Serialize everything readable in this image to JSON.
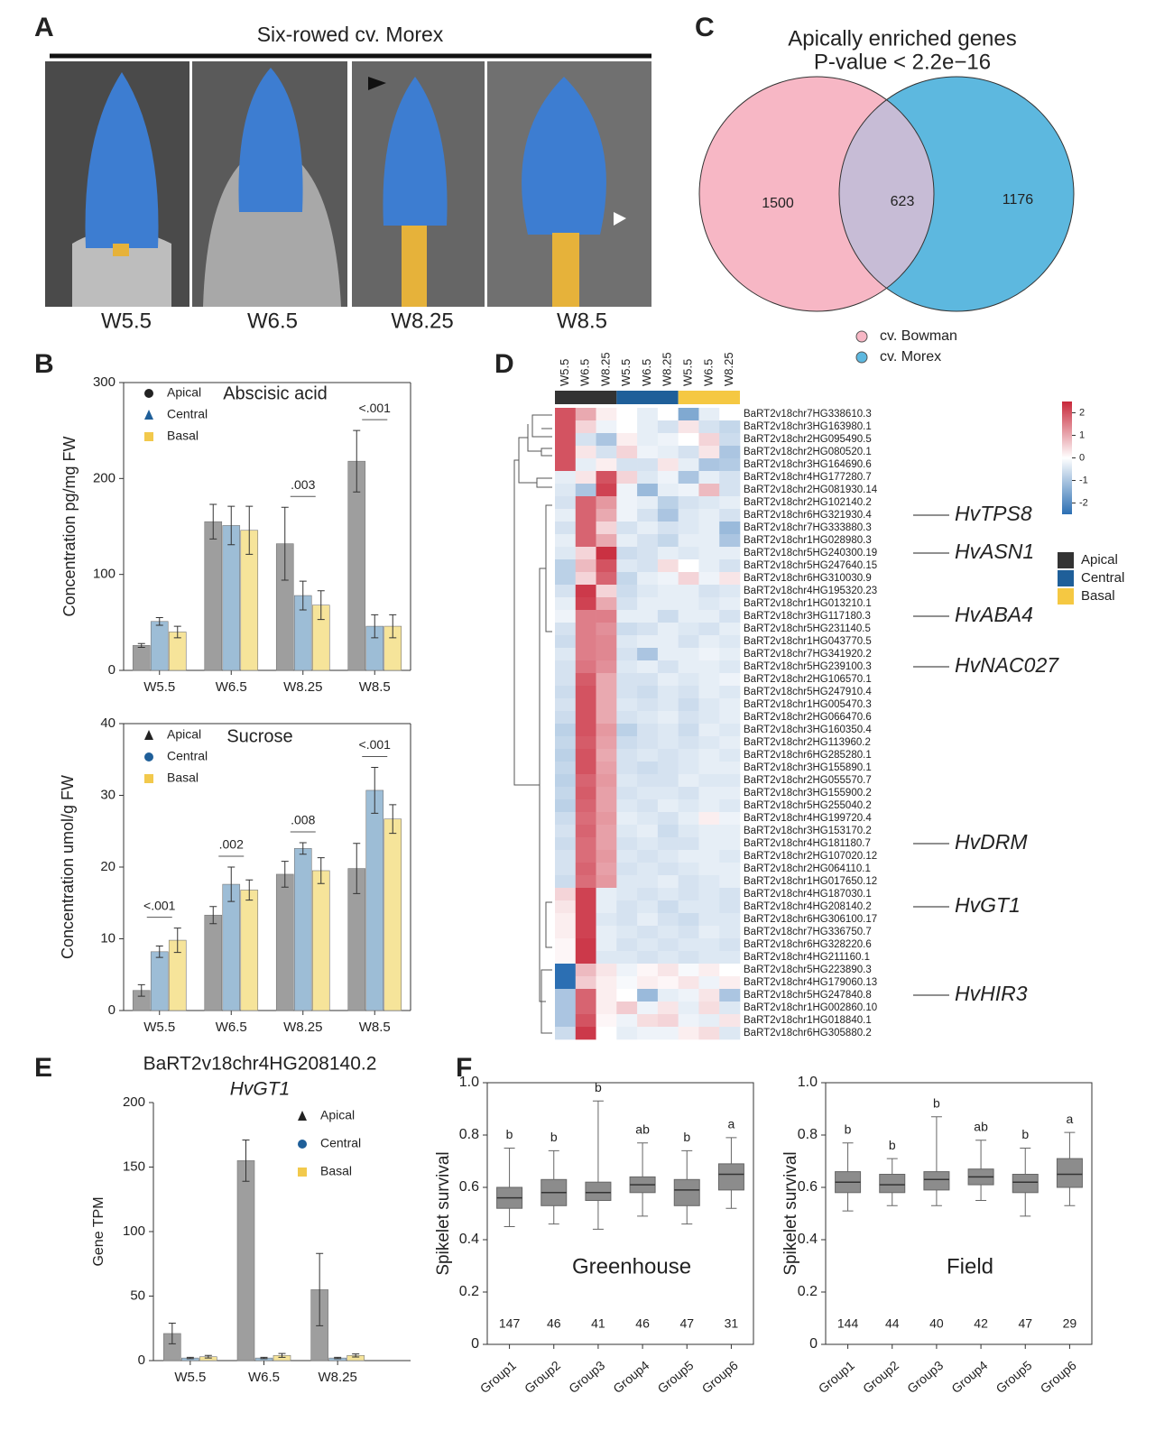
{
  "figure_a": {
    "panel": "A",
    "title": "Six-rowed cv. Morex",
    "stages": [
      "W5.5",
      "W6.5",
      "W8.25",
      "W8.5"
    ]
  },
  "chart_data": [
    {
      "type": "bar",
      "panel": "B",
      "title": "Abscisic acid",
      "y_label": "Concentration pg/mg FW",
      "categories": [
        "W5.5",
        "W6.5",
        "W8.25",
        "W8.5"
      ],
      "series": [
        {
          "name": "Apical",
          "color": "#9e9e9e",
          "marker": "circle",
          "values": [
            26,
            155,
            132,
            218
          ],
          "errors": [
            2,
            18,
            38,
            32
          ]
        },
        {
          "name": "Central",
          "color": "#9dbdd6",
          "marker": "triangle",
          "values": [
            51,
            151,
            78,
            46
          ],
          "errors": [
            4,
            20,
            15,
            12
          ]
        },
        {
          "name": "Basal",
          "color": "#f6e49a",
          "marker": "square",
          "values": [
            40,
            146,
            68,
            46
          ],
          "errors": [
            6,
            25,
            15,
            12
          ]
        }
      ],
      "annotations": [
        null,
        null,
        ".003",
        "<.001"
      ],
      "ylim": [
        0,
        300
      ],
      "yticks": [
        0,
        100,
        200,
        300
      ]
    },
    {
      "type": "bar",
      "title": "Sucrose",
      "y_label": "Concentration umol/g FW",
      "categories": [
        "W5.5",
        "W6.5",
        "W8.25",
        "W8.5"
      ],
      "series": [
        {
          "name": "Apical",
          "color": "#9e9e9e",
          "marker": "triangle",
          "values": [
            2.8,
            13.3,
            19,
            19.8
          ],
          "errors": [
            0.8,
            1.2,
            1.8,
            3.5
          ]
        },
        {
          "name": "Central",
          "color": "#9dbdd6",
          "marker": "circle",
          "values": [
            8.2,
            17.6,
            22.6,
            30.7
          ],
          "errors": [
            0.8,
            2.4,
            0.8,
            3.2
          ]
        },
        {
          "name": "Basal",
          "color": "#f6e49a",
          "marker": "square",
          "values": [
            9.8,
            16.8,
            19.5,
            26.7
          ],
          "errors": [
            1.7,
            1.4,
            1.8,
            2
          ]
        }
      ],
      "annotations": [
        "<.001",
        ".002",
        ".008",
        "<.001"
      ],
      "ylim": [
        0,
        40
      ],
      "yticks": [
        0,
        10,
        20,
        30,
        40
      ]
    },
    {
      "type": "bar",
      "panel": "E",
      "title": "BaRT2v18chr4HG208140.2",
      "subtitle": "HvGT1",
      "y_label": "Gene TPM",
      "categories": [
        "W5.5",
        "W6.5",
        "W8.25"
      ],
      "series": [
        {
          "name": "Apical",
          "color": "#9e9e9e",
          "marker": "triangle",
          "values": [
            21,
            155,
            55
          ],
          "errors": [
            8,
            16,
            28
          ]
        },
        {
          "name": "Central",
          "color": "#9dbdd6",
          "marker": "circle",
          "values": [
            2,
            2,
            2
          ],
          "errors": [
            0.5,
            0.5,
            0.5
          ]
        },
        {
          "name": "Basal",
          "color": "#f6e49a",
          "marker": "square",
          "values": [
            3,
            4,
            4
          ],
          "errors": [
            1,
            1.5,
            1.2
          ]
        }
      ],
      "annotations": [
        null,
        null,
        null
      ],
      "ylim": [
        0,
        200
      ],
      "yticks": [
        0,
        50,
        100,
        150,
        200
      ]
    },
    {
      "type": "heatmap",
      "panel": "D",
      "columns": [
        "W5.5",
        "W6.5",
        "W8.25",
        "W5.5",
        "W6.5",
        "W8.25",
        "W5.5",
        "W6.5",
        "W8.25"
      ],
      "groups": [
        {
          "name": "Apical",
          "color": "#333333"
        },
        {
          "name": "Central",
          "color": "#1f5f99"
        },
        {
          "name": "Basal",
          "color": "#f5c842"
        }
      ],
      "clim": [
        -2.5,
        2.5
      ],
      "cticks": [
        2,
        1,
        0,
        -1,
        -2
      ],
      "rows": [
        "BaRT2v18chr7HG338610.3",
        "BaRT2v18chr3HG163980.1",
        "BaRT2v18chr2HG095490.5",
        "BaRT2v18chr2HG080520.1",
        "BaRT2v18chr3HG164690.6",
        "BaRT2v18chr4HG177280.7",
        "BaRT2v18chr2HG081930.14",
        "BaRT2v18chr2HG102140.2",
        "BaRT2v18chr6HG321930.4",
        "BaRT2v18chr7HG333880.3",
        "BaRT2v18chr1HG028980.3",
        "BaRT2v18chr5HG240300.19",
        "BaRT2v18chr5HG247640.15",
        "BaRT2v18chr6HG310030.9",
        "BaRT2v18chr4HG195320.23",
        "BaRT2v18chr1HG013210.1",
        "BaRT2v18chr3HG117180.3",
        "BaRT2v18chr5HG231140.5",
        "BaRT2v18chr1HG043770.5",
        "BaRT2v18chr7HG341920.2",
        "BaRT2v18chr5HG239100.3",
        "BaRT2v18chr2HG106570.1",
        "BaRT2v18chr5HG247910.4",
        "BaRT2v18chr1HG005470.3",
        "BaRT2v18chr2HG066470.6",
        "BaRT2v18chr3HG160350.4",
        "BaRT2v18chr2HG113960.2",
        "BaRT2v18chr6HG285280.1",
        "BaRT2v18chr3HG155890.1",
        "BaRT2v18chr2HG055570.7",
        "BaRT2v18chr3HG155900.2",
        "BaRT2v18chr5HG255040.2",
        "BaRT2v18chr4HG199720.4",
        "BaRT2v18chr3HG153170.2",
        "BaRT2v18chr4HG181180.7",
        "BaRT2v18chr2HG107020.12",
        "BaRT2v18chr2HG064110.1",
        "BaRT2v18chr1HG017650.12",
        "BaRT2v18chr4HG187030.1",
        "BaRT2v18chr4HG208140.2",
        "BaRT2v18chr6HG306100.17",
        "BaRT2v18chr7HG336750.7",
        "BaRT2v18chr6HG328220.6",
        "BaRT2v18chr4HG211160.1",
        "BaRT2v18chr5HG223890.3",
        "BaRT2v18chr4HG179060.13",
        "BaRT2v18chr5HG247840.8",
        "BaRT2v18chr1HG002860.10",
        "BaRT2v18chr1HG018840.1",
        "BaRT2v18chr6HG305880.2"
      ],
      "annotations": [
        null,
        null,
        null,
        null,
        null,
        null,
        null,
        null,
        "HvTPS8",
        null,
        null,
        "HvASN1",
        null,
        null,
        null,
        null,
        "HvABA4",
        null,
        null,
        null,
        "HvNAC027",
        null,
        null,
        null,
        null,
        null,
        null,
        null,
        null,
        null,
        null,
        null,
        null,
        null,
        "HvDRM",
        null,
        null,
        null,
        null,
        "HvGT1",
        null,
        null,
        null,
        null,
        null,
        null,
        "HvHIR3",
        null,
        null,
        null
      ],
      "values": [
        [
          2,
          1,
          0.2,
          0,
          -0.3,
          0,
          -1.5,
          -0.3,
          0
        ],
        [
          2,
          0.5,
          -0.2,
          0,
          -0.3,
          -0.5,
          0.3,
          -0.5,
          -0.7
        ],
        [
          2,
          -0.5,
          -1,
          0.2,
          -0.3,
          -0.2,
          0,
          0.5,
          -0.6
        ],
        [
          2,
          0.3,
          -0.5,
          0.5,
          -0.2,
          -0.3,
          -0.5,
          0.3,
          -1
        ],
        [
          2,
          -0.3,
          0.2,
          -0.5,
          -0.5,
          0.3,
          -0.3,
          -1,
          -0.9
        ],
        [
          -0.3,
          0.3,
          2,
          0.5,
          -0.4,
          -0.2,
          -1,
          -0.3,
          -0.5
        ],
        [
          -0.4,
          -1,
          2.2,
          -0.2,
          -1.2,
          -0.3,
          -0.2,
          0.8,
          -0.5
        ],
        [
          -0.5,
          1.8,
          1.2,
          -0.2,
          -0.3,
          -0.8,
          -0.5,
          -0.4,
          -0.3
        ],
        [
          -0.3,
          1.8,
          1,
          -0.2,
          -0.5,
          -1,
          -0.4,
          -0.3,
          -0.5
        ],
        [
          -0.5,
          1.8,
          0.5,
          -0.5,
          -0.3,
          -0.5,
          -0.4,
          -0.3,
          -1.2
        ],
        [
          -0.3,
          1.8,
          1,
          -0.3,
          -0.5,
          -0.7,
          -0.3,
          -0.3,
          -1
        ],
        [
          -0.4,
          0.5,
          2.4,
          -0.6,
          -0.5,
          -0.3,
          -0.4,
          -0.3,
          -0.3
        ],
        [
          -0.8,
          0.8,
          2,
          -0.4,
          -0.5,
          0.4,
          0,
          -0.3,
          -0.5
        ],
        [
          -0.8,
          0.5,
          1.8,
          -0.7,
          -0.3,
          -0.2,
          0.5,
          -0.2,
          0.3
        ],
        [
          -0.5,
          2.3,
          0.5,
          -0.6,
          -0.4,
          -0.3,
          -0.3,
          -0.5,
          -0.4
        ],
        [
          -0.3,
          2.2,
          1,
          -0.5,
          -0.3,
          -0.3,
          -0.3,
          -0.4,
          -0.3
        ],
        [
          -0.2,
          1.5,
          1.5,
          -0.3,
          -0.3,
          -0.6,
          -0.3,
          -0.3,
          -0.5
        ],
        [
          -0.5,
          1.5,
          1.3,
          -0.6,
          -0.5,
          -0.3,
          -0.4,
          -0.5,
          -0.3
        ],
        [
          -0.6,
          1.5,
          1.4,
          -0.4,
          -0.3,
          -0.3,
          -0.5,
          -0.3,
          -0.4
        ],
        [
          -0.4,
          1.5,
          1.4,
          -0.5,
          -1,
          -0.3,
          -0.3,
          -0.2,
          -0.3
        ],
        [
          -0.5,
          1.6,
          1.3,
          -0.4,
          -0.3,
          -0.5,
          -0.3,
          -0.3,
          -0.4
        ],
        [
          -0.5,
          1.9,
          1,
          -0.5,
          -0.5,
          -0.3,
          -0.4,
          -0.3,
          -0.2
        ],
        [
          -0.6,
          2,
          1,
          -0.5,
          -0.6,
          -0.4,
          -0.5,
          -0.3,
          -0.4
        ],
        [
          -0.5,
          2,
          1,
          -0.4,
          -0.5,
          -0.4,
          -0.6,
          -0.4,
          -0.3
        ],
        [
          -0.6,
          2,
          1,
          -0.5,
          -0.4,
          -0.3,
          -0.5,
          -0.4,
          -0.3
        ],
        [
          -0.8,
          2,
          1.2,
          -0.8,
          -0.5,
          -0.4,
          -0.6,
          -0.3,
          -0.4
        ],
        [
          -0.7,
          1.9,
          1.1,
          -0.6,
          -0.5,
          -0.4,
          -0.5,
          -0.4,
          -0.3
        ],
        [
          -0.8,
          2,
          1,
          -0.5,
          -0.4,
          -0.5,
          -0.4,
          -0.3,
          -0.4
        ],
        [
          -0.7,
          2,
          1.1,
          -0.5,
          -0.6,
          -0.5,
          -0.4,
          -0.3,
          -0.3
        ],
        [
          -0.8,
          1.8,
          1.2,
          -0.4,
          -0.5,
          -0.5,
          -0.3,
          -0.4,
          -0.4
        ],
        [
          -0.7,
          1.9,
          1.1,
          -0.5,
          -0.4,
          -0.4,
          -0.5,
          -0.3,
          -0.3
        ],
        [
          -0.8,
          1.8,
          1.1,
          -0.4,
          -0.5,
          -0.3,
          -0.4,
          -0.3,
          -0.4
        ],
        [
          -0.6,
          1.7,
          1.2,
          -0.3,
          -0.4,
          -0.5,
          -0.3,
          0.2,
          -0.2
        ],
        [
          -0.5,
          1.8,
          1.1,
          -0.4,
          -0.3,
          -0.6,
          -0.4,
          -0.3,
          -0.3
        ],
        [
          -0.6,
          1.7,
          1.1,
          -0.5,
          -0.4,
          -0.5,
          -0.5,
          -0.3,
          -0.3
        ],
        [
          -0.5,
          1.7,
          1.2,
          -0.4,
          -0.5,
          -0.4,
          -0.3,
          -0.3,
          -0.4
        ],
        [
          -0.5,
          1.8,
          1.1,
          -0.5,
          -0.4,
          -0.5,
          -0.4,
          -0.3,
          -0.3
        ],
        [
          -0.6,
          1.7,
          1.2,
          -0.4,
          -0.4,
          -0.3,
          -0.5,
          -0.4,
          -0.3
        ],
        [
          0.5,
          2.2,
          -0.3,
          -0.4,
          -0.5,
          -0.4,
          -0.5,
          -0.4,
          -0.5
        ],
        [
          0.3,
          2.2,
          -0.3,
          -0.5,
          -0.4,
          -0.6,
          -0.4,
          -0.4,
          -0.5
        ],
        [
          0.2,
          2.2,
          -0.4,
          -0.5,
          -0.3,
          -0.5,
          -0.6,
          -0.4,
          -0.4
        ],
        [
          0.2,
          2.2,
          -0.3,
          -0.4,
          -0.5,
          -0.4,
          -0.5,
          -0.3,
          -0.4
        ],
        [
          0.1,
          2.3,
          -0.3,
          -0.5,
          -0.4,
          -0.5,
          -0.4,
          -0.4,
          -0.5
        ],
        [
          0.1,
          2.3,
          -0.4,
          -0.4,
          -0.5,
          -0.4,
          -0.5,
          -0.4,
          -0.4
        ],
        [
          -2.6,
          0.8,
          0.3,
          -0.2,
          0.1,
          0.3,
          -0.1,
          0.2,
          0
        ],
        [
          -2.5,
          0.6,
          0.2,
          -0.1,
          0.2,
          0.1,
          0.3,
          -0.2,
          0.2
        ],
        [
          -1,
          1.8,
          0.2,
          0,
          -1.2,
          -0.3,
          -0.2,
          0.3,
          -1
        ],
        [
          -1,
          1.8,
          0.2,
          0.6,
          -0.2,
          0.3,
          -0.3,
          0.4,
          -0.4
        ],
        [
          -1,
          2,
          0.1,
          -0.2,
          0.4,
          0.5,
          -0.2,
          -0.3,
          0.3
        ],
        [
          -0.6,
          2.3,
          0,
          -0.3,
          -0.2,
          -0.2,
          0.2,
          0.4,
          -0.4
        ]
      ]
    },
    {
      "type": "venn",
      "panel": "C",
      "title": "Apically enriched genes",
      "subtitle": "P-value < 2.2e−16",
      "sets": [
        {
          "name": "cv. Bowman",
          "color": "#f7b7c5",
          "only": 1500
        },
        {
          "name": "cv. Morex",
          "color": "#5db8df",
          "only": 1176
        }
      ],
      "intersection": 623,
      "intersection_color": "#c7bcd6"
    },
    {
      "type": "box",
      "panel": "F",
      "title": "Greenhouse",
      "y_label": "Spikelet survival",
      "categories": [
        "Group1",
        "Group2",
        "Group3",
        "Group4",
        "Group5",
        "Group6"
      ],
      "boxes": [
        {
          "min": 0.45,
          "q1": 0.52,
          "median": 0.56,
          "q3": 0.6,
          "max": 0.75
        },
        {
          "min": 0.46,
          "q1": 0.53,
          "median": 0.58,
          "q3": 0.63,
          "max": 0.74
        },
        {
          "min": 0.44,
          "q1": 0.55,
          "median": 0.58,
          "q3": 0.62,
          "max": 0.93
        },
        {
          "min": 0.49,
          "q1": 0.58,
          "median": 0.61,
          "q3": 0.64,
          "max": 0.77
        },
        {
          "min": 0.46,
          "q1": 0.53,
          "median": 0.59,
          "q3": 0.63,
          "max": 0.74
        },
        {
          "min": 0.52,
          "q1": 0.59,
          "median": 0.65,
          "q3": 0.69,
          "max": 0.79
        }
      ],
      "letters": [
        "b",
        "b",
        "b",
        "ab",
        "b",
        "a"
      ],
      "n": [
        147,
        46,
        41,
        46,
        47,
        31
      ],
      "color": "#8c8c8c",
      "ylim": [
        0,
        1
      ],
      "yticks": [
        0,
        0.2,
        0.4,
        0.6,
        0.8,
        {
          "value": 1,
          "label": "1.0"
        }
      ]
    },
    {
      "type": "box",
      "title": "Field",
      "y_label": "Spikelet survival",
      "categories": [
        "Group1",
        "Group2",
        "Group3",
        "Group4",
        "Group5",
        "Group6"
      ],
      "boxes": [
        {
          "min": 0.51,
          "q1": 0.58,
          "median": 0.62,
          "q3": 0.66,
          "max": 0.77
        },
        {
          "min": 0.53,
          "q1": 0.58,
          "median": 0.61,
          "q3": 0.65,
          "max": 0.71
        },
        {
          "min": 0.53,
          "q1": 0.59,
          "median": 0.63,
          "q3": 0.66,
          "max": 0.87
        },
        {
          "min": 0.55,
          "q1": 0.61,
          "median": 0.64,
          "q3": 0.67,
          "max": 0.78
        },
        {
          "min": 0.49,
          "q1": 0.58,
          "median": 0.62,
          "q3": 0.65,
          "max": 0.75
        },
        {
          "min": 0.53,
          "q1": 0.6,
          "median": 0.65,
          "q3": 0.71,
          "max": 0.81
        }
      ],
      "letters": [
        "b",
        "b",
        "b",
        "ab",
        "b",
        "a"
      ],
      "n": [
        144,
        44,
        40,
        42,
        47,
        29
      ],
      "color": "#8c8c8c",
      "ylim": [
        0,
        1
      ],
      "yticks": [
        0,
        0.2,
        0.4,
        0.6,
        0.8,
        {
          "value": 1,
          "label": "1.0"
        }
      ]
    }
  ]
}
